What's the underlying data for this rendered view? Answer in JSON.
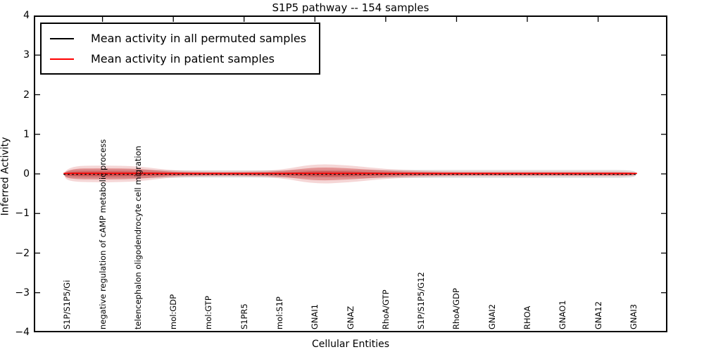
{
  "chart_data": {
    "type": "area",
    "title": "S1P5 pathway -- 154 samples",
    "xlabel": "Cellular Entities",
    "ylabel": "Inferred Activity",
    "ylim": [
      -4,
      4
    ],
    "yticks": [
      4,
      3,
      2,
      1,
      0,
      -1,
      -2,
      -3,
      -4
    ],
    "grid": false,
    "legend_position": "upper left",
    "legend": [
      {
        "label": "Mean activity in all permuted samples",
        "color": "#000000"
      },
      {
        "label": "Mean activity in patient samples",
        "color": "#ff0000"
      }
    ],
    "series": [
      {
        "name": "Mean activity in all permuted samples",
        "style": "black dashed line at y=0"
      },
      {
        "name": "Mean activity in patient samples",
        "style": "red solid line at y=0 with red spread band"
      }
    ],
    "entities": [
      {
        "label": "S1P/S1P5/Gi",
        "patient_mean": 0.0,
        "permuted_mean": 0.0,
        "patient_spread": 0.12,
        "permuted_spread": 0.1
      },
      {
        "label": "negative regulation of cAMP metabolic process",
        "patient_mean": 0.0,
        "permuted_mean": 0.0,
        "patient_spread": 0.13,
        "permuted_spread": 0.1
      },
      {
        "label": "telencephalon oligodendrocyte cell migration",
        "patient_mean": 0.0,
        "permuted_mean": 0.0,
        "patient_spread": 0.12,
        "permuted_spread": 0.1
      },
      {
        "label": "mol:GDP",
        "patient_mean": 0.0,
        "permuted_mean": 0.0,
        "patient_spread": 0.04,
        "permuted_spread": 0.08
      },
      {
        "label": "mol:GTP",
        "patient_mean": 0.0,
        "permuted_mean": 0.0,
        "patient_spread": 0.03,
        "permuted_spread": 0.08
      },
      {
        "label": "S1PR5",
        "patient_mean": 0.0,
        "permuted_mean": 0.0,
        "patient_spread": 0.03,
        "permuted_spread": 0.08
      },
      {
        "label": "mol:S1P",
        "patient_mean": 0.0,
        "permuted_mean": 0.0,
        "patient_spread": 0.05,
        "permuted_spread": 0.08
      },
      {
        "label": "GNAI1",
        "patient_mean": 0.0,
        "permuted_mean": 0.0,
        "patient_spread": 0.16,
        "permuted_spread": 0.09
      },
      {
        "label": "GNAZ",
        "patient_mean": 0.0,
        "permuted_mean": 0.0,
        "patient_spread": 0.13,
        "permuted_spread": 0.09
      },
      {
        "label": "RhoA/GTP",
        "patient_mean": 0.0,
        "permuted_mean": 0.0,
        "patient_spread": 0.07,
        "permuted_spread": 0.09
      },
      {
        "label": "S1P/S1P5/G12",
        "patient_mean": 0.0,
        "permuted_mean": 0.0,
        "patient_spread": 0.04,
        "permuted_spread": 0.09
      },
      {
        "label": "RhoA/GDP",
        "patient_mean": 0.0,
        "permuted_mean": 0.0,
        "patient_spread": 0.03,
        "permuted_spread": 0.09
      },
      {
        "label": "GNAI2",
        "patient_mean": 0.0,
        "permuted_mean": 0.0,
        "patient_spread": 0.03,
        "permuted_spread": 0.09
      },
      {
        "label": "RHOA",
        "patient_mean": 0.0,
        "permuted_mean": 0.0,
        "patient_spread": 0.03,
        "permuted_spread": 0.09
      },
      {
        "label": "GNAO1",
        "patient_mean": 0.0,
        "permuted_mean": 0.0,
        "patient_spread": 0.03,
        "permuted_spread": 0.09
      },
      {
        "label": "GNA12",
        "patient_mean": 0.0,
        "permuted_mean": 0.0,
        "patient_spread": 0.03,
        "permuted_spread": 0.09
      },
      {
        "label": "GNAI3",
        "patient_mean": 0.0,
        "permuted_mean": 0.0,
        "patient_spread": 0.03,
        "permuted_spread": 0.09
      }
    ],
    "colors": {
      "patient_line": "#ff0000",
      "patient_band": "#c81e1e",
      "permuted_line": "#000000",
      "permuted_band": "#000000",
      "axis": "#000000"
    }
  }
}
